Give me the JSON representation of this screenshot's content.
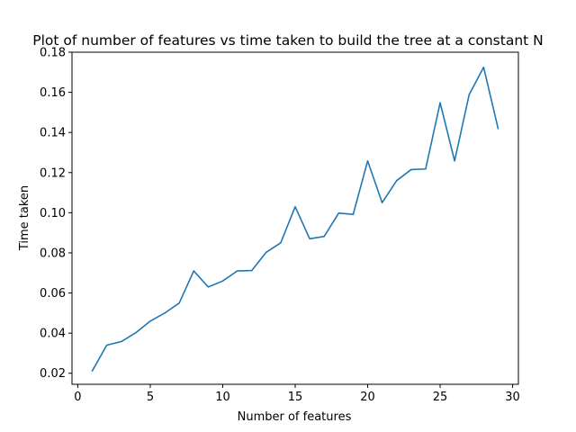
{
  "chart_data": {
    "type": "line",
    "title": "Plot of number of features vs time taken to build the tree at a constant N",
    "xlabel": "Number of features",
    "ylabel": "Time taken",
    "xlim": [
      -0.4,
      30.4
    ],
    "ylim": [
      0.0145,
      0.18
    ],
    "xticks": [
      0,
      5,
      10,
      15,
      20,
      25,
      30
    ],
    "yticks": [
      0.02,
      0.04,
      0.06,
      0.08,
      0.1,
      0.12,
      0.14,
      0.16,
      0.18
    ],
    "ytick_labels": [
      "0.02",
      "0.04",
      "0.06",
      "0.08",
      "0.10",
      "0.12",
      "0.14",
      "0.16",
      "0.18"
    ],
    "grid": false,
    "series": [
      {
        "color": "#1f77b4",
        "x": [
          1,
          2,
          3,
          4,
          5,
          6,
          7,
          8,
          9,
          10,
          11,
          12,
          13,
          14,
          15,
          16,
          17,
          18,
          19,
          20,
          21,
          22,
          23,
          24,
          25,
          26,
          27,
          28,
          29
        ],
        "values": [
          0.0212,
          0.034,
          0.0358,
          0.0402,
          0.046,
          0.05,
          0.055,
          0.071,
          0.063,
          0.066,
          0.071,
          0.0712,
          0.0803,
          0.085,
          0.103,
          0.087,
          0.0882,
          0.0998,
          0.0992,
          0.1258,
          0.105,
          0.116,
          0.1215,
          0.1218,
          0.1548,
          0.1258,
          0.1588,
          0.1725,
          0.142
        ]
      }
    ]
  }
}
